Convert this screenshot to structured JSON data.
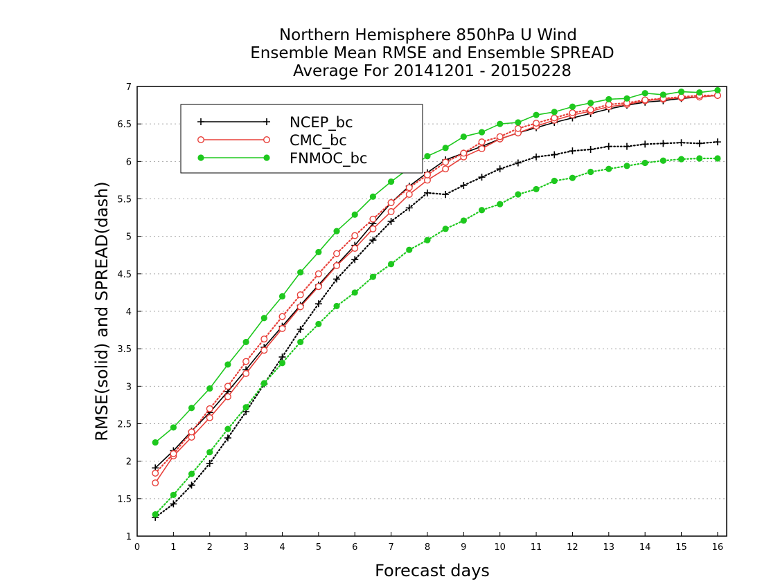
{
  "chart_data": {
    "type": "line",
    "title": [
      "Northern Hemisphere 850hPa U Wind",
      "Ensemble Mean RMSE and Ensemble SPREAD",
      "Average For 20141201 - 20150228"
    ],
    "xlabel": "Forecast days",
    "ylabel": "RMSE(solid) and SPREAD(dash)",
    "xlim": [
      0,
      16.25
    ],
    "ylim": [
      1,
      7
    ],
    "xticks": [
      0,
      1,
      2,
      3,
      4,
      5,
      6,
      7,
      8,
      9,
      10,
      11,
      12,
      13,
      14,
      15,
      16
    ],
    "yticks": [
      1,
      1.5,
      2,
      2.5,
      3,
      3.5,
      4,
      4.5,
      5,
      5.5,
      6,
      6.5,
      7
    ],
    "grid": "horizontal dotted",
    "legend_position": "top-left",
    "x": [
      0.5,
      1,
      1.5,
      2,
      2.5,
      3,
      3.5,
      4,
      4.5,
      5,
      5.5,
      6,
      6.5,
      7,
      7.5,
      8,
      8.5,
      9,
      9.5,
      10,
      10.5,
      11,
      11.5,
      12,
      12.5,
      13,
      13.5,
      14,
      14.5,
      15,
      15.5,
      16
    ],
    "series": [
      {
        "name": "NCEP_bc",
        "color": "#000000",
        "marker": "plus",
        "style": "solid",
        "values": [
          1.91,
          2.14,
          2.4,
          2.65,
          2.93,
          3.22,
          3.52,
          3.8,
          4.08,
          4.35,
          4.62,
          4.88,
          5.17,
          5.45,
          5.67,
          5.85,
          6.02,
          6.11,
          6.2,
          6.3,
          6.38,
          6.45,
          6.52,
          6.58,
          6.64,
          6.7,
          6.75,
          6.79,
          6.81,
          6.84,
          6.86,
          6.88
        ]
      },
      {
        "name": "NCEP_bc",
        "color": "#000000",
        "marker": "plus",
        "style": "dotted",
        "values": [
          1.25,
          1.43,
          1.68,
          1.97,
          2.31,
          2.66,
          3.03,
          3.39,
          3.76,
          4.1,
          4.43,
          4.69,
          4.95,
          5.2,
          5.38,
          5.58,
          5.56,
          5.68,
          5.79,
          5.9,
          5.98,
          6.06,
          6.09,
          6.14,
          6.16,
          6.2,
          6.2,
          6.23,
          6.24,
          6.25,
          6.24,
          6.26
        ]
      },
      {
        "name": "CMC_bc",
        "color": "#e8403a",
        "marker": "circle-open",
        "style": "solid",
        "values": [
          1.71,
          2.07,
          2.32,
          2.58,
          2.86,
          3.17,
          3.48,
          3.77,
          4.06,
          4.33,
          4.61,
          4.84,
          5.1,
          5.33,
          5.56,
          5.75,
          5.9,
          6.06,
          6.17,
          6.3,
          6.38,
          6.47,
          6.55,
          6.62,
          6.67,
          6.73,
          6.76,
          6.81,
          6.83,
          6.85,
          6.86,
          6.88
        ]
      },
      {
        "name": "CMC_bc",
        "color": "#e8403a",
        "marker": "circle-open",
        "style": "dotted",
        "values": [
          1.84,
          2.1,
          2.39,
          2.7,
          3.0,
          3.33,
          3.63,
          3.93,
          4.22,
          4.5,
          4.77,
          5.01,
          5.23,
          5.45,
          5.65,
          5.82,
          5.99,
          6.11,
          6.26,
          6.33,
          6.44,
          6.51,
          6.58,
          6.65,
          6.69,
          6.76,
          6.78,
          6.82,
          6.84,
          6.86,
          6.88,
          6.88
        ]
      },
      {
        "name": "FNMOC_bc",
        "color": "#1ec81e",
        "marker": "circle-filled",
        "style": "solid",
        "values": [
          2.25,
          2.45,
          2.71,
          2.97,
          3.29,
          3.59,
          3.91,
          4.2,
          4.52,
          4.79,
          5.07,
          5.29,
          5.53,
          5.73,
          5.91,
          6.07,
          6.18,
          6.33,
          6.39,
          6.5,
          6.52,
          6.62,
          6.66,
          6.73,
          6.78,
          6.83,
          6.84,
          6.91,
          6.89,
          6.93,
          6.92,
          6.95
        ]
      },
      {
        "name": "FNMOC_bc",
        "color": "#1ec81e",
        "marker": "circle-filled",
        "style": "dotted",
        "values": [
          1.29,
          1.55,
          1.83,
          2.12,
          2.43,
          2.72,
          3.04,
          3.31,
          3.59,
          3.83,
          4.07,
          4.25,
          4.46,
          4.63,
          4.82,
          4.95,
          5.1,
          5.21,
          5.35,
          5.43,
          5.56,
          5.63,
          5.74,
          5.78,
          5.86,
          5.9,
          5.94,
          5.98,
          6.01,
          6.03,
          6.04,
          6.04
        ]
      }
    ],
    "legend": [
      {
        "name": "NCEP_bc",
        "color": "#000000",
        "marker": "plus"
      },
      {
        "name": "CMC_bc",
        "color": "#e8403a",
        "marker": "circle-open"
      },
      {
        "name": "FNMOC_bc",
        "color": "#1ec81e",
        "marker": "circle-filled"
      }
    ]
  }
}
